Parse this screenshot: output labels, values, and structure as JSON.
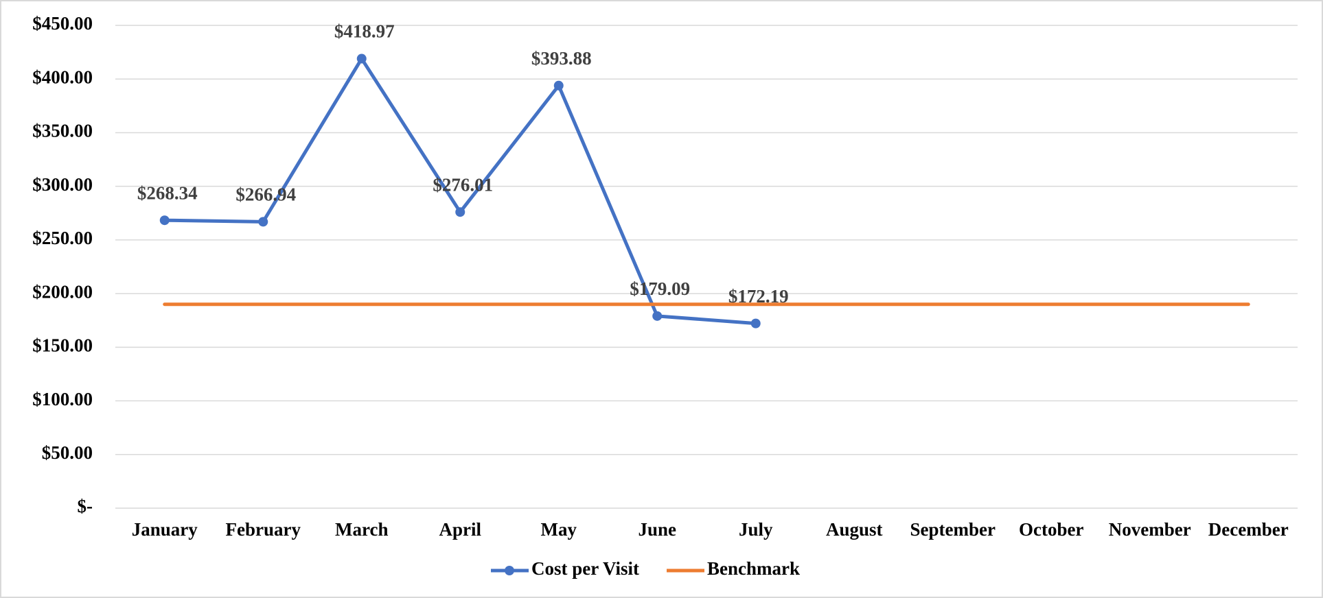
{
  "chart_data": {
    "type": "line",
    "categories": [
      "January",
      "February",
      "March",
      "April",
      "May",
      "June",
      "July",
      "August",
      "September",
      "October",
      "November",
      "December"
    ],
    "series": [
      {
        "name": "Cost per Visit",
        "color": "#4472c4",
        "marker": true,
        "values": [
          268.34,
          266.94,
          418.97,
          276.01,
          393.88,
          179.09,
          172.19,
          null,
          null,
          null,
          null,
          null
        ],
        "value_labels": [
          "$268.34",
          "$266.94",
          "$418.97",
          "$276.01",
          "$393.88",
          "$179.09",
          "$172.19",
          null,
          null,
          null,
          null,
          null
        ]
      },
      {
        "name": "Benchmark",
        "color": "#ed7d31",
        "marker": false,
        "values": [
          190,
          190,
          190,
          190,
          190,
          190,
          190,
          190,
          190,
          190,
          190,
          190
        ]
      }
    ],
    "ylim": [
      0,
      450
    ],
    "yticks": [
      {
        "value": 0,
        "label": "$-"
      },
      {
        "value": 50,
        "label": "$50.00"
      },
      {
        "value": 100,
        "label": "$100.00"
      },
      {
        "value": 150,
        "label": "$150.00"
      },
      {
        "value": 200,
        "label": "$200.00"
      },
      {
        "value": 250,
        "label": "$250.00"
      },
      {
        "value": 300,
        "label": "$300.00"
      },
      {
        "value": 350,
        "label": "$350.00"
      },
      {
        "value": 400,
        "label": "$400.00"
      },
      {
        "value": 450,
        "label": "$450.00"
      }
    ],
    "grid": true,
    "legend": "bottom"
  }
}
